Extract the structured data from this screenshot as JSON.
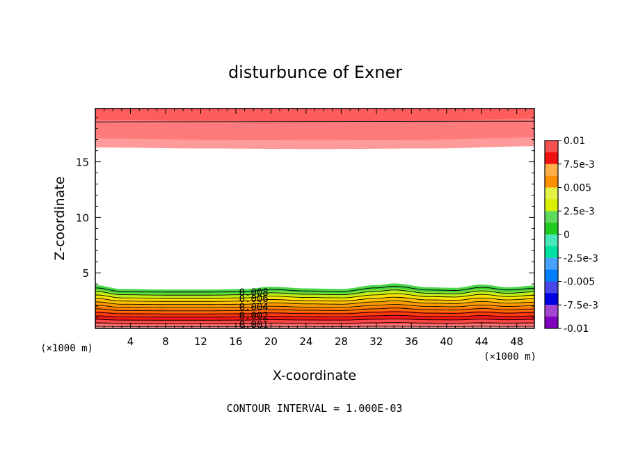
{
  "chart_data": {
    "type": "contour",
    "title": "disturbunce of Exner",
    "xlabel": "X-coordinate",
    "ylabel": "Z-coordinate",
    "x_unit_label_left": "(×1000 m)",
    "x_unit_label_right": "(×1000 m)",
    "footer": "CONTOUR INTERVAL = 1.000E-03",
    "xlim": [
      0,
      50
    ],
    "ylim": [
      0,
      19.8
    ],
    "x_ticks": [
      4,
      8,
      12,
      16,
      20,
      24,
      28,
      32,
      36,
      40,
      44,
      48
    ],
    "y_ticks": [
      5,
      10,
      15
    ],
    "grid": false,
    "colorbar": {
      "placement": "right",
      "range": [
        -0.01,
        0.01
      ],
      "tick_labels": [
        "0.01",
        "7.5e-3",
        "0.005",
        "2.5e-3",
        "0",
        "-2.5e-3",
        "-0.005",
        "-7.5e-3",
        "-0.01"
      ],
      "bands": [
        {
          "from": -0.01,
          "to": -0.0075,
          "color": "#8000c0"
        },
        {
          "from": -0.0075,
          "to": -0.005,
          "color": "#0000e0"
        },
        {
          "from": -0.005,
          "to": -0.0025,
          "color": "#0080ff"
        },
        {
          "from": -0.0025,
          "to": 0.0,
          "color": "#00e0a0"
        },
        {
          "from": 0.0,
          "to": 0.0025,
          "color": "#20cc20"
        },
        {
          "from": 0.0025,
          "to": 0.005,
          "color": "#d8f000"
        },
        {
          "from": 0.005,
          "to": 0.0075,
          "color": "#ff9000"
        },
        {
          "from": 0.0075,
          "to": 0.01,
          "color": "#f01010"
        }
      ]
    },
    "fill_levels": [
      {
        "value": 0.0,
        "color": "#4cd64c"
      },
      {
        "value": 0.0005,
        "color": "#3acb3a"
      },
      {
        "value": 0.001,
        "color": "#7ee03a"
      },
      {
        "value": 0.0015,
        "color": "#b8ef1f"
      },
      {
        "value": 0.002,
        "color": "#e8f000"
      },
      {
        "value": 0.0025,
        "color": "#ffe000"
      },
      {
        "value": 0.003,
        "color": "#ffc000"
      },
      {
        "value": 0.004,
        "color": "#ff9a00"
      },
      {
        "value": 0.005,
        "color": "#ff7000"
      },
      {
        "value": 0.006,
        "color": "#ff3a10"
      },
      {
        "value": 0.007,
        "color": "#f41818"
      },
      {
        "value": 0.008,
        "color": "#ff4a4a"
      },
      {
        "value": 0.009,
        "color": "#ff7a7a"
      },
      {
        "value": 0.0095,
        "color": "#ff9a9a"
      }
    ],
    "field": {
      "lower_layer_top_z": [
        3.9,
        3.55,
        3.5,
        3.5,
        3.55,
        3.75,
        3.6,
        3.55,
        3.9,
        4.05,
        3.7,
        3.65,
        3.95,
        3.7,
        3.85
      ],
      "lower_layer_x": [
        0,
        3,
        8,
        13,
        17,
        20,
        24,
        28,
        32,
        34,
        38,
        41,
        44,
        47,
        50
      ],
      "upper_layer_bottom_z": [
        16.3,
        16.2,
        16.15,
        16.2,
        16.4
      ],
      "upper_layer_x": [
        0,
        12,
        25,
        38,
        50
      ],
      "upper_contour_z": 18.6
    },
    "contour_labels": [
      {
        "text": "0.008",
        "x": 18.2,
        "z": 3.25
      },
      {
        "text": "0.006",
        "x": 18.2,
        "z": 2.7
      },
      {
        "text": "0.004",
        "x": 18.2,
        "z": 1.95
      },
      {
        "text": "0.002",
        "x": 18.2,
        "z": 1.15
      },
      {
        "text": "0.001",
        "x": 18.2,
        "z": 0.35
      }
    ]
  }
}
